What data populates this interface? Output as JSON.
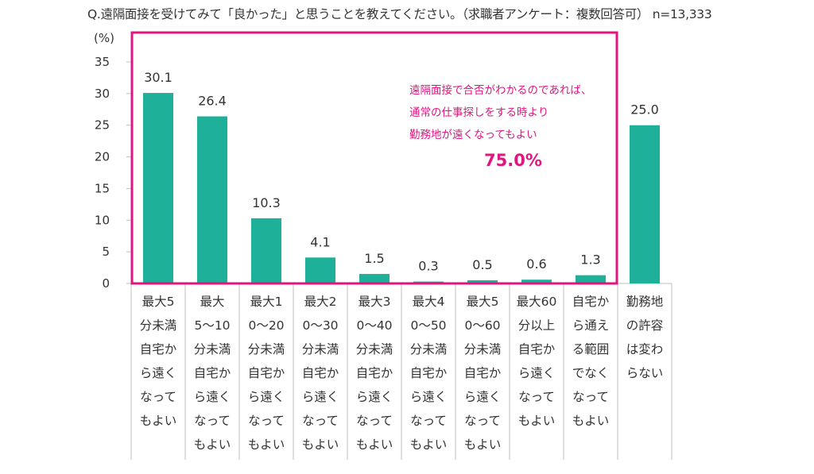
{
  "question": "Q.遠隔面接を受けてみて「良かった」と思うことを教えてください。（求職者アンケート：複数回答可） n=13,333",
  "unit": "(%)",
  "callout": {
    "text": "遠隔面接で合否がわかるのであれば、\n通常の仕事探しをする時より\n勤務地が遠くなってもよい",
    "value": "75.0%"
  },
  "colors": {
    "bar": "#1fb09a",
    "highlight": "#e0157f",
    "axis": "#bfbfbf"
  },
  "chart_data": {
    "type": "bar",
    "ylim": [
      0,
      35
    ],
    "yticks": [
      0,
      5,
      10,
      15,
      20,
      25,
      30,
      35
    ],
    "categories": [
      "最大5分未満自宅から遠くなってもよい",
      "最大5〜10分未満自宅から遠くなってもよい",
      "最大10〜20分未満自宅から遠くなってもよい",
      "最大20〜30分未満自宅から遠くなってもよい",
      "最大30〜40分未満自宅から遠くなってもよい",
      "最大40〜50分未満自宅から遠くなってもよい",
      "最大50〜60分未満自宅から遠くなってもよい",
      "最大60分以上自宅から遠くなってもよい",
      "自宅から通える範囲でなくなってもよい",
      "勤務地の許容は変わらない"
    ],
    "values": [
      30.1,
      26.4,
      10.3,
      4.1,
      1.5,
      0.3,
      0.5,
      0.6,
      1.3,
      25.0
    ],
    "value_labels": [
      "30.1",
      "26.4",
      "10.3",
      "4.1",
      "1.5",
      "0.3",
      "0.5",
      "0.6",
      "1.3",
      "25.0"
    ],
    "grid": false,
    "highlight_group": {
      "from_category": 0,
      "to_category": 8
    }
  }
}
